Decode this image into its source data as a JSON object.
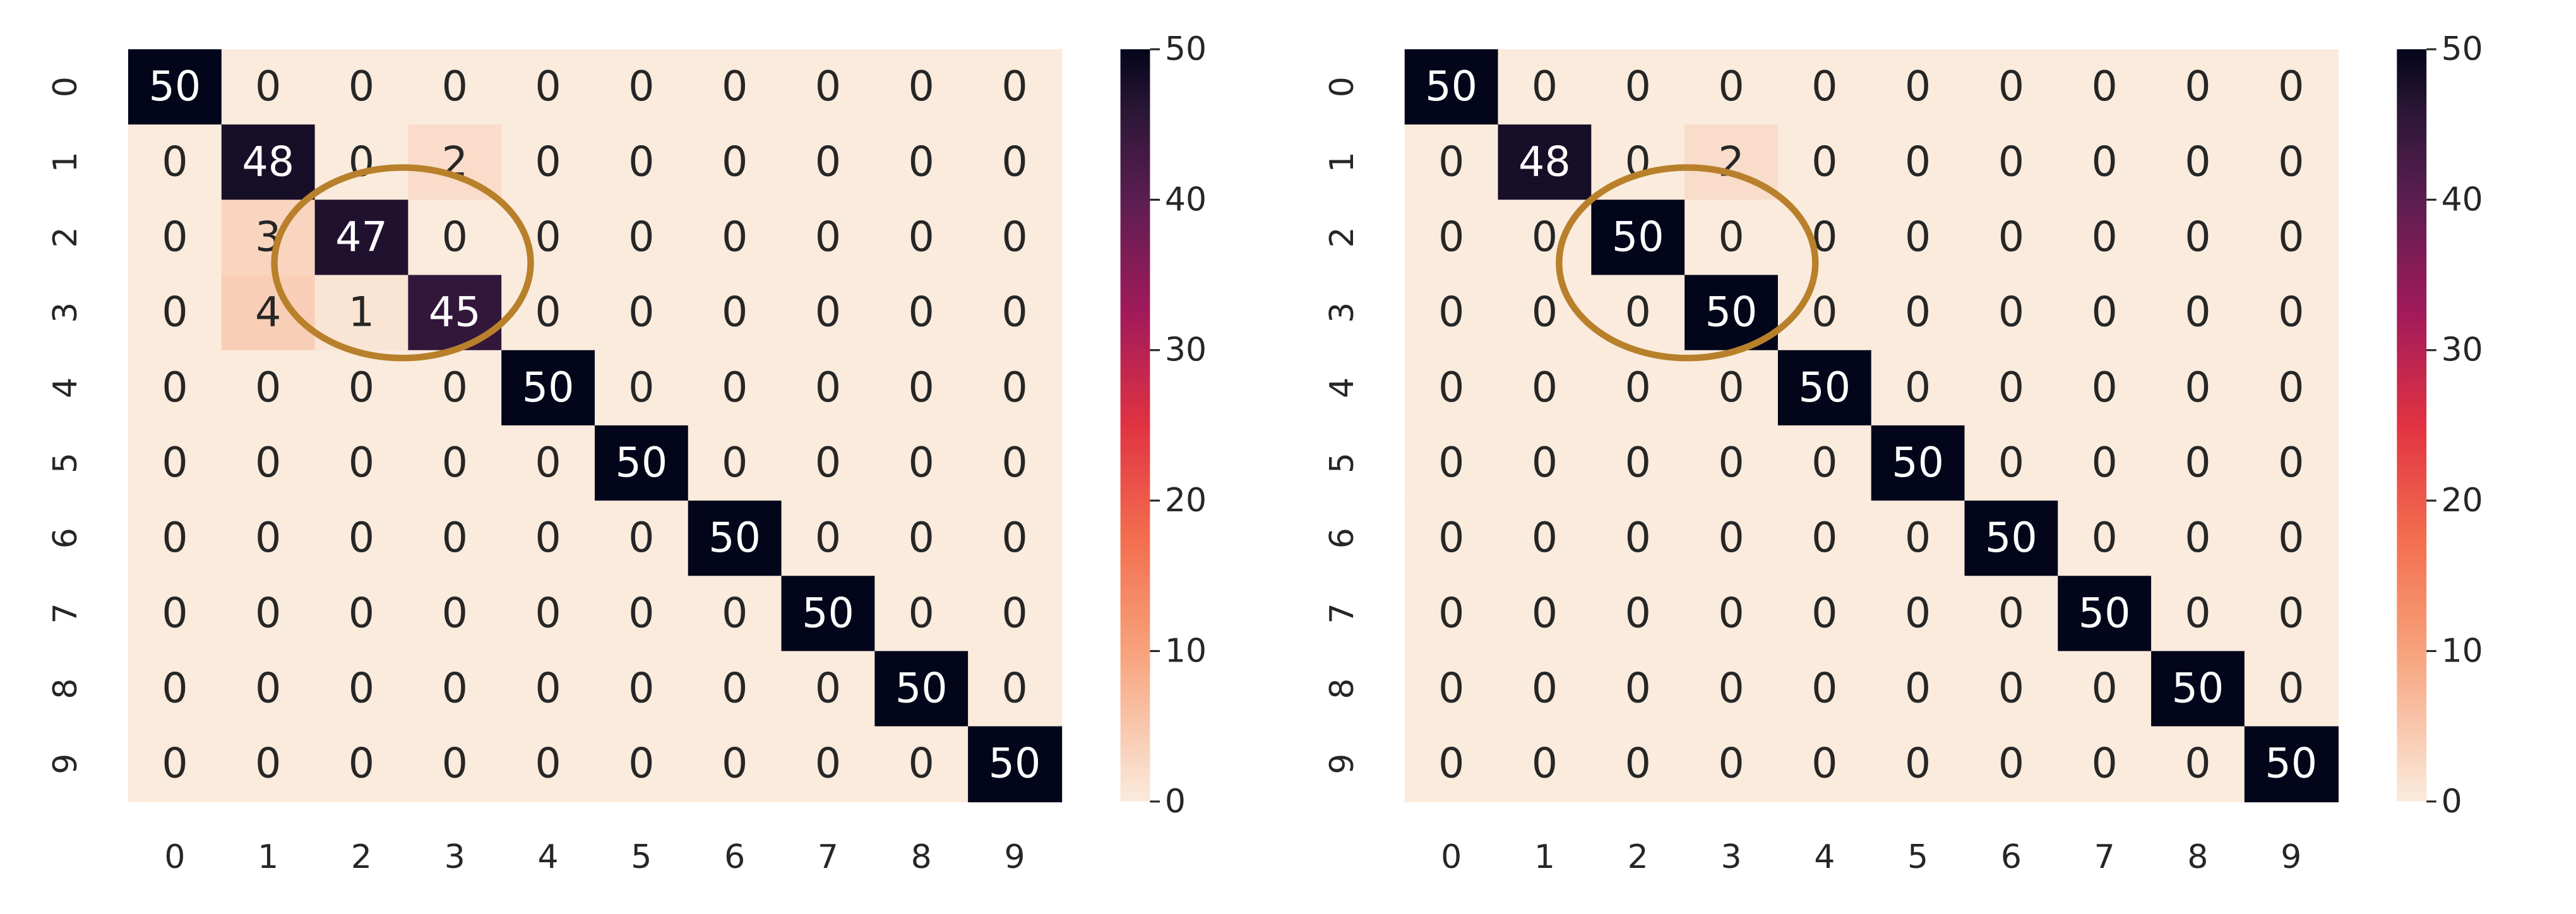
{
  "chart_data": [
    {
      "type": "heatmap",
      "x_categories": [
        "0",
        "1",
        "2",
        "3",
        "4",
        "5",
        "6",
        "7",
        "8",
        "9"
      ],
      "y_categories": [
        "0",
        "1",
        "2",
        "3",
        "4",
        "5",
        "6",
        "7",
        "8",
        "9"
      ],
      "values": [
        [
          50,
          0,
          0,
          0,
          0,
          0,
          0,
          0,
          0,
          0
        ],
        [
          0,
          48,
          0,
          2,
          0,
          0,
          0,
          0,
          0,
          0
        ],
        [
          0,
          3,
          47,
          0,
          0,
          0,
          0,
          0,
          0,
          0
        ],
        [
          0,
          4,
          1,
          45,
          0,
          0,
          0,
          0,
          0,
          0
        ],
        [
          0,
          0,
          0,
          0,
          50,
          0,
          0,
          0,
          0,
          0
        ],
        [
          0,
          0,
          0,
          0,
          0,
          50,
          0,
          0,
          0,
          0
        ],
        [
          0,
          0,
          0,
          0,
          0,
          0,
          50,
          0,
          0,
          0
        ],
        [
          0,
          0,
          0,
          0,
          0,
          0,
          0,
          50,
          0,
          0
        ],
        [
          0,
          0,
          0,
          0,
          0,
          0,
          0,
          0,
          50,
          0
        ],
        [
          0,
          0,
          0,
          0,
          0,
          0,
          0,
          0,
          0,
          50
        ]
      ],
      "colormap": "rocket_r",
      "clim": [
        0,
        50
      ],
      "cticks": [
        0,
        10,
        20,
        30,
        40,
        50
      ]
    },
    {
      "type": "heatmap",
      "x_categories": [
        "0",
        "1",
        "2",
        "3",
        "4",
        "5",
        "6",
        "7",
        "8",
        "9"
      ],
      "y_categories": [
        "0",
        "1",
        "2",
        "3",
        "4",
        "5",
        "6",
        "7",
        "8",
        "9"
      ],
      "values": [
        [
          50,
          0,
          0,
          0,
          0,
          0,
          0,
          0,
          0,
          0
        ],
        [
          0,
          48,
          0,
          2,
          0,
          0,
          0,
          0,
          0,
          0
        ],
        [
          0,
          0,
          50,
          0,
          0,
          0,
          0,
          0,
          0,
          0
        ],
        [
          0,
          0,
          0,
          50,
          0,
          0,
          0,
          0,
          0,
          0
        ],
        [
          0,
          0,
          0,
          0,
          50,
          0,
          0,
          0,
          0,
          0
        ],
        [
          0,
          0,
          0,
          0,
          0,
          50,
          0,
          0,
          0,
          0
        ],
        [
          0,
          0,
          0,
          0,
          0,
          0,
          50,
          0,
          0,
          0
        ],
        [
          0,
          0,
          0,
          0,
          0,
          0,
          0,
          50,
          0,
          0
        ],
        [
          0,
          0,
          0,
          0,
          0,
          0,
          0,
          0,
          50,
          0
        ],
        [
          0,
          0,
          0,
          0,
          0,
          0,
          0,
          0,
          0,
          50
        ]
      ],
      "colormap": "rocket_r",
      "clim": [
        0,
        50
      ],
      "cticks": [
        0,
        10,
        20,
        30,
        40,
        50
      ]
    }
  ]
}
